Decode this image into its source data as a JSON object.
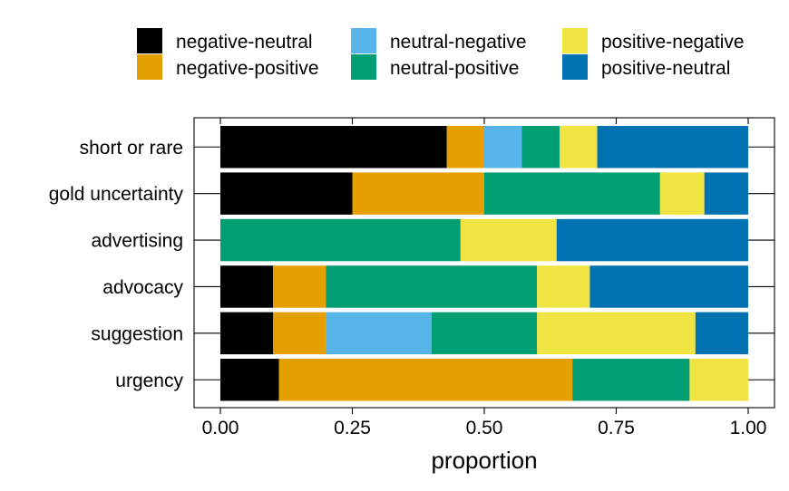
{
  "chart_data": {
    "type": "bar",
    "orientation": "horizontal",
    "stacked": true,
    "xlabel": "proportion",
    "ylabel": "",
    "xlim": [
      0,
      1
    ],
    "x_ticks": [
      0,
      0.25,
      0.5,
      0.75,
      1
    ],
    "x_tick_labels": [
      "0.00",
      "0.25",
      "0.50",
      "0.75",
      "1.00"
    ],
    "grid": false,
    "legend_position": "top",
    "categories": [
      "short or rare",
      "gold uncertainty",
      "advertising",
      "advocacy",
      "suggestion",
      "urgency"
    ],
    "series": [
      {
        "name": "negative-neutral",
        "color": "#000000",
        "values": [
          0.429,
          0.25,
          0.0,
          0.1,
          0.1,
          0.111
        ]
      },
      {
        "name": "negative-positive",
        "color": "#E69F00",
        "values": [
          0.071,
          0.25,
          0.0,
          0.1,
          0.1,
          0.556
        ]
      },
      {
        "name": "neutral-negative",
        "color": "#56B4E9",
        "values": [
          0.071,
          0.0,
          0.0,
          0.0,
          0.2,
          0.0
        ]
      },
      {
        "name": "neutral-positive",
        "color": "#009E73",
        "values": [
          0.072,
          0.333,
          0.455,
          0.4,
          0.2,
          0.222
        ]
      },
      {
        "name": "positive-negative",
        "color": "#F0E442",
        "values": [
          0.071,
          0.084,
          0.182,
          0.1,
          0.3,
          0.111
        ]
      },
      {
        "name": "positive-neutral",
        "color": "#0072B2",
        "values": [
          0.286,
          0.083,
          0.363,
          0.3,
          0.1,
          0.0
        ]
      }
    ]
  }
}
